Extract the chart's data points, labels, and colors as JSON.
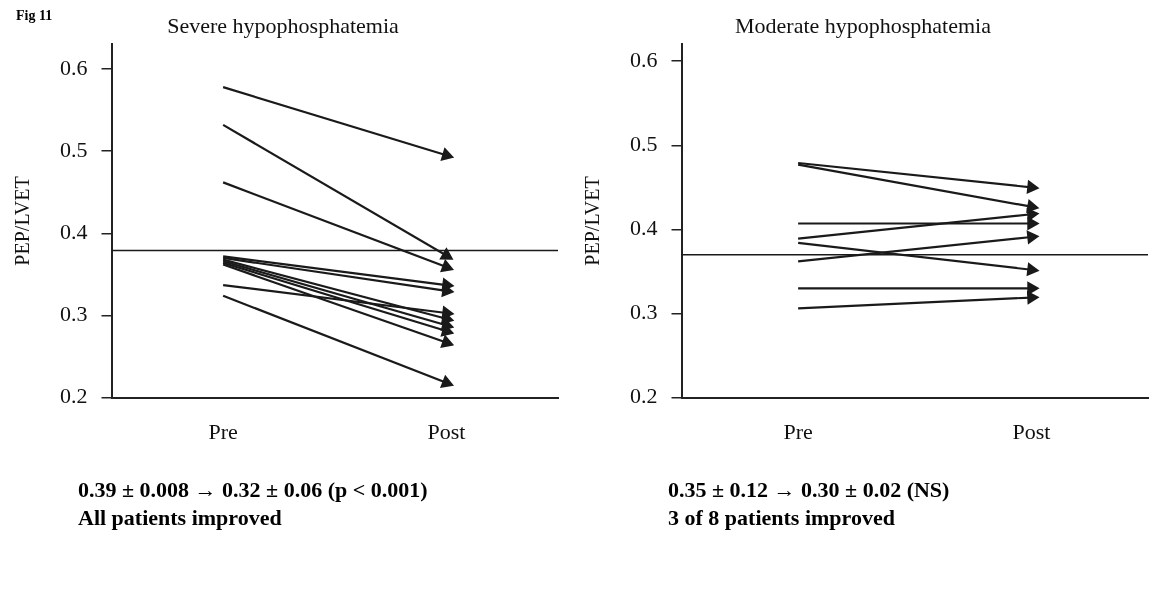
{
  "chart_data": [
    {
      "type": "line",
      "title": "Severe hypophosphatemia",
      "ylabel": "PEP/LVET",
      "categories": [
        "Pre",
        "Post"
      ],
      "ylim": [
        0.2,
        0.63
      ],
      "yticks": [
        0.2,
        0.3,
        0.4,
        0.5,
        0.6
      ],
      "grid": false,
      "legend": false,
      "line_style": "solid",
      "series": [
        {
          "color": "#1a1a1a",
          "values": [
            0.578,
            0.495
          ]
        },
        {
          "color": "#1a1a1a",
          "values": [
            0.532,
            0.373
          ]
        },
        {
          "color": "#1a1a1a",
          "values": [
            0.462,
            0.359
          ]
        },
        {
          "color": "#1a1a1a",
          "values": [
            0.372,
            0.337
          ]
        },
        {
          "color": "#1a1a1a",
          "values": [
            0.37,
            0.33
          ]
        },
        {
          "color": "#1a1a1a",
          "values": [
            0.368,
            0.296
          ]
        },
        {
          "color": "#1a1a1a",
          "values": [
            0.366,
            0.288
          ]
        },
        {
          "color": "#1a1a1a",
          "values": [
            0.364,
            0.281
          ]
        },
        {
          "color": "#1a1a1a",
          "values": [
            0.362,
            0.267
          ]
        },
        {
          "color": "#1a1a1a",
          "values": [
            0.337,
            0.303
          ]
        },
        {
          "color": "#1a1a1a",
          "values": [
            0.324,
            0.218
          ]
        }
      ],
      "ref_lines": [
        {
          "axis": "y",
          "value": 0.379,
          "color": "#1a1a1a"
        }
      ],
      "annotations": [
        "Fig 11",
        "0.39 ± 0.008 → 0.32 ± 0.06 (p < 0.001)",
        "All patients improved"
      ]
    },
    {
      "type": "line",
      "title": "Moderate hypophosphatemia",
      "ylabel": "PEP/LVET",
      "categories": [
        "Pre",
        "Post"
      ],
      "ylim": [
        0.2,
        0.62
      ],
      "yticks": [
        0.2,
        0.3,
        0.4,
        0.5,
        0.6
      ],
      "grid": false,
      "legend": false,
      "line_style": "solid",
      "series": [
        {
          "color": "#1a1a1a",
          "values": [
            0.479,
            0.45
          ]
        },
        {
          "color": "#1a1a1a",
          "values": [
            0.477,
            0.427
          ]
        },
        {
          "color": "#1a1a1a",
          "values": [
            0.407,
            0.407
          ]
        },
        {
          "color": "#1a1a1a",
          "values": [
            0.389,
            0.418
          ]
        },
        {
          "color": "#1a1a1a",
          "values": [
            0.384,
            0.352
          ]
        },
        {
          "color": "#1a1a1a",
          "values": [
            0.362,
            0.391
          ]
        },
        {
          "color": "#1a1a1a",
          "values": [
            0.33,
            0.33
          ]
        },
        {
          "color": "#1a1a1a",
          "values": [
            0.306,
            0.319
          ]
        }
      ],
      "ref_lines": [
        {
          "axis": "y",
          "value": 0.37,
          "color": "#1a1a1a"
        }
      ],
      "annotations": [
        "0.35 ± 0.12 → 0.30 ± 0.02 (NS)",
        "3 of 8 patients improved"
      ]
    }
  ]
}
